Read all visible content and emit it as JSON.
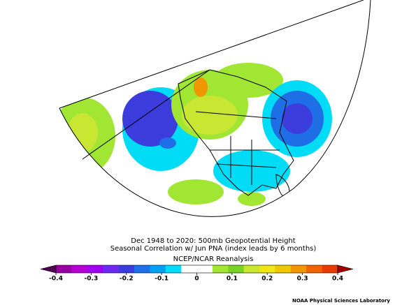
{
  "title": [
    "Dec 1948 to 2020: 500mb Geopotential Height",
    "Seasonal Correlation w/ Jun PNA (index leads by 6 months)",
    "NCEP/NCAR Reanalysis"
  ],
  "colorbar": {
    "ticks": [
      -0.4,
      -0.3,
      -0.2,
      -0.1,
      0,
      0.1,
      0.2,
      0.3,
      0.4
    ],
    "colors": [
      "#9600a0",
      "#b400d2",
      "#a000f0",
      "#6e28f0",
      "#3c3cdc",
      "#1e6ee6",
      "#00a0f0",
      "#00dcf5",
      "#ffffff",
      "#ffffff",
      "#a0e632",
      "#78d228",
      "#c8e632",
      "#f0e614",
      "#f0c800",
      "#f09600",
      "#f06400",
      "#e63c00"
    ],
    "under": "#500050",
    "over": "#a00000"
  },
  "credit": "NOAA Physical Sciences Laboratory"
}
